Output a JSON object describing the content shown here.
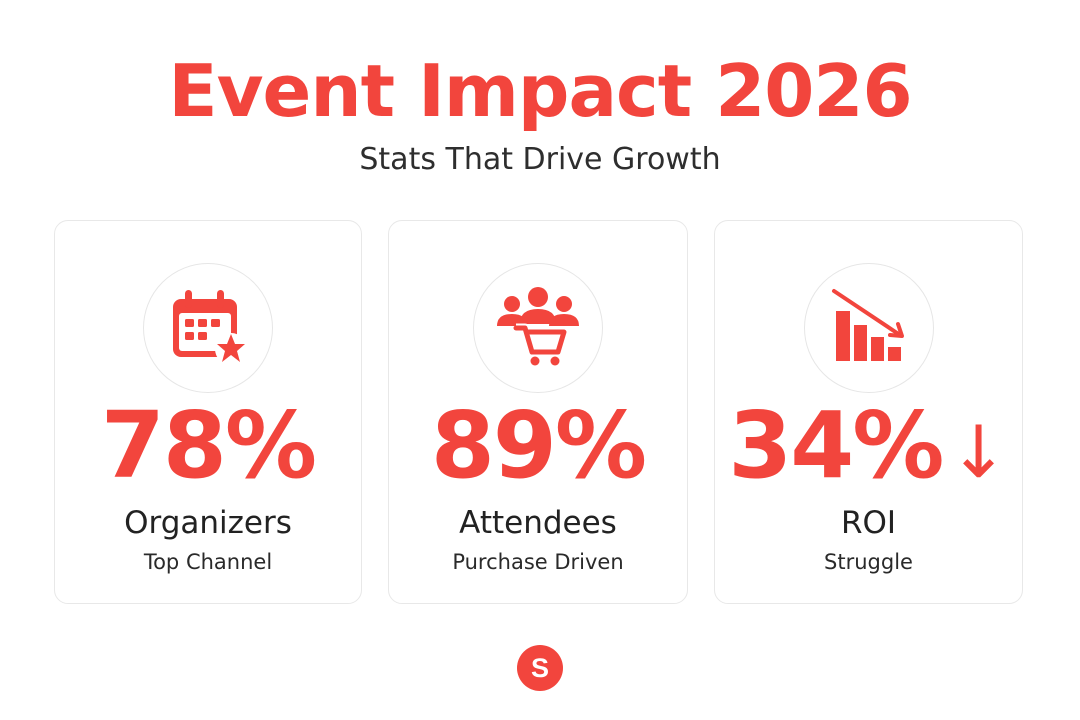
{
  "header": {
    "title": "Event Impact 2026",
    "subtitle": "Stats That Drive Growth"
  },
  "stats": [
    {
      "icon": "calendar-star-icon",
      "value": "78%",
      "label": "Organizers",
      "sublabel": "Top Channel"
    },
    {
      "icon": "people-cart-icon",
      "value": "89%",
      "label": "Attendees",
      "sublabel": "Purchase Driven"
    },
    {
      "icon": "declining-bar-chart-icon",
      "value": "34%",
      "arrow": "↓",
      "label": "ROI",
      "sublabel": "Struggle"
    }
  ],
  "logo": {
    "letter": "S"
  },
  "colors": {
    "accent": "#f2453d",
    "text": "#222222",
    "card_border": "#e8e8e8",
    "background": "#ffffff"
  }
}
